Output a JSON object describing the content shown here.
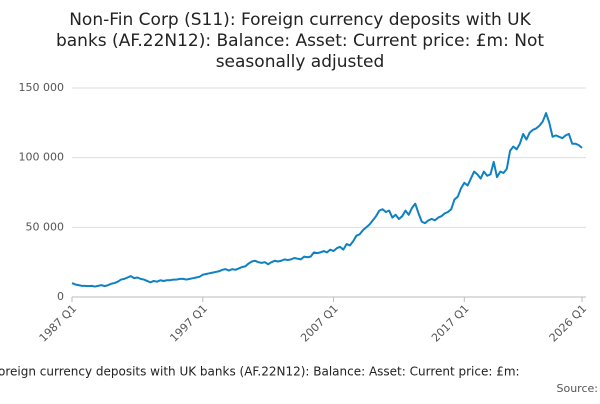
{
  "chart_data": {
    "type": "line",
    "title": [
      "Non-Fin Corp (S11): Foreign currency deposits with UK",
      "banks (AF.22N12): Balance: Asset: Current price: £m: Not",
      "seasonally adjusted"
    ],
    "x_label": "oreign currency deposits with UK banks (AF.22N12): Balance: Asset: Current price: £m:",
    "source": "Source:",
    "categories": [
      "1987 Q1",
      null,
      null,
      null,
      null,
      null,
      null,
      null,
      null,
      null,
      null,
      null,
      null,
      null,
      null,
      null,
      null,
      null,
      null,
      null,
      null,
      null,
      null,
      null,
      null,
      null,
      null,
      null,
      null,
      null,
      null,
      null,
      null,
      null,
      null,
      null,
      null,
      null,
      null,
      null,
      "1997 Q1",
      null,
      null,
      null,
      null,
      null,
      null,
      null,
      null,
      null,
      null,
      null,
      null,
      null,
      null,
      null,
      null,
      null,
      null,
      null,
      null,
      null,
      null,
      null,
      null,
      null,
      null,
      null,
      null,
      null,
      null,
      null,
      null,
      null,
      null,
      null,
      null,
      null,
      null,
      null,
      "2007 Q1",
      null,
      null,
      null,
      null,
      null,
      null,
      null,
      null,
      null,
      null,
      null,
      null,
      null,
      null,
      null,
      null,
      null,
      null,
      null,
      null,
      null,
      null,
      null,
      null,
      null,
      null,
      null,
      null,
      null,
      null,
      null,
      null,
      null,
      null,
      null,
      null,
      null,
      null,
      null,
      "2017 Q1",
      null,
      null,
      null,
      null,
      null,
      null,
      null,
      null,
      null,
      null,
      null,
      null,
      null,
      null,
      null,
      null,
      null,
      null,
      null,
      null,
      null,
      null,
      null,
      null,
      null,
      null,
      null,
      null,
      null,
      null,
      null,
      null,
      null,
      null,
      null,
      "2026 Q1"
    ],
    "series": [
      {
        "color": "#0f81c3",
        "values": [
          10000,
          9000,
          8500,
          8000,
          8000,
          7800,
          8000,
          7500,
          8000,
          8500,
          7800,
          8500,
          9500,
          10000,
          11000,
          12500,
          13000,
          14000,
          15000,
          13500,
          14000,
          13000,
          12500,
          11500,
          10500,
          11500,
          11000,
          12000,
          11500,
          12000,
          12000,
          12500,
          12500,
          13000,
          13000,
          12500,
          13000,
          13500,
          14000,
          14500,
          16000,
          16500,
          17000,
          17500,
          18000,
          18500,
          19500,
          20000,
          19000,
          20000,
          19500,
          20500,
          21500,
          22000,
          24000,
          25500,
          26000,
          25000,
          24500,
          25000,
          23500,
          25000,
          26000,
          25500,
          26000,
          27000,
          26500,
          27000,
          28000,
          27500,
          27000,
          29000,
          28500,
          29000,
          32000,
          31500,
          32000,
          33000,
          32000,
          34000,
          33000,
          35000,
          36000,
          34000,
          38000,
          37000,
          40000,
          44000,
          45000,
          48000,
          50000,
          52000,
          55000,
          58000,
          62000,
          63000,
          61000,
          62000,
          57000,
          59000,
          56000,
          58000,
          62000,
          59000,
          64000,
          67000,
          60000,
          54000,
          53000,
          55000,
          56000,
          55000,
          57000,
          58000,
          60000,
          61000,
          63000,
          70000,
          72000,
          78000,
          82000,
          80000,
          85000,
          90000,
          88000,
          85000,
          90000,
          87000,
          88000,
          97000,
          86000,
          90000,
          89000,
          92000,
          105000,
          108000,
          106000,
          110000,
          117000,
          113000,
          118000,
          120000,
          121000,
          123000,
          126000,
          132000,
          125000,
          115000,
          116000,
          115000,
          114000,
          116000,
          117000,
          110000,
          110000,
          109000,
          107000
        ]
      }
    ],
    "ylim": [
      0,
      150000
    ],
    "yticks": [
      0,
      {
        "value": 50000,
        "label": "50 000"
      },
      {
        "value": 100000,
        "label": "100 000"
      },
      {
        "value": 150000,
        "label": "150 000"
      }
    ],
    "grid": true
  }
}
